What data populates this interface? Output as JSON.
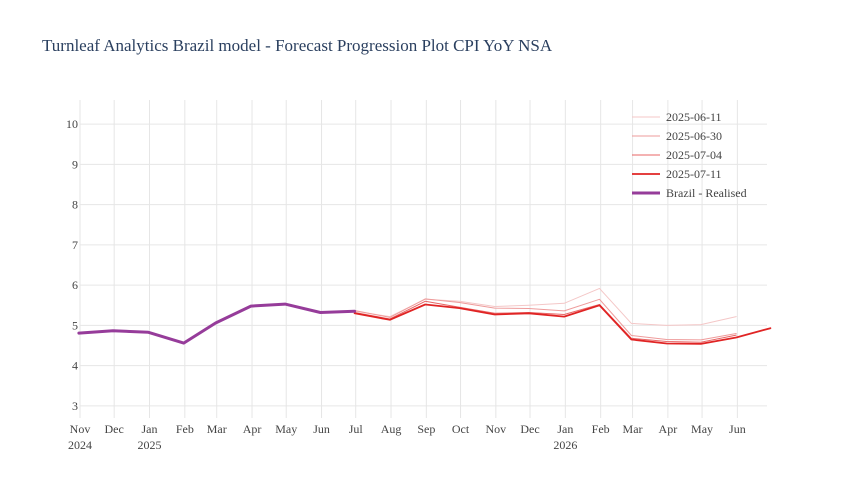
{
  "chart_data": {
    "type": "line",
    "title": "Turnleaf Analytics Brazil model - Forecast Progression Plot CPI YoY NSA",
    "xlabel": "",
    "ylabel": "",
    "x_range": [
      "2024-11-01",
      "2026-06-27"
    ],
    "ylim": [
      2.7,
      10.6
    ],
    "y_ticks": [
      3,
      4,
      5,
      6,
      7,
      8,
      9,
      10
    ],
    "x_ticks": [
      {
        "date": "2024-11-01",
        "label": "Nov",
        "year": "2024"
      },
      {
        "date": "2024-12-01",
        "label": "Dec",
        "year": ""
      },
      {
        "date": "2025-01-01",
        "label": "Jan",
        "year": "2025"
      },
      {
        "date": "2025-02-01",
        "label": "Feb",
        "year": ""
      },
      {
        "date": "2025-03-01",
        "label": "Mar",
        "year": ""
      },
      {
        "date": "2025-04-01",
        "label": "Apr",
        "year": ""
      },
      {
        "date": "2025-05-01",
        "label": "May",
        "year": ""
      },
      {
        "date": "2025-06-01",
        "label": "Jun",
        "year": ""
      },
      {
        "date": "2025-07-01",
        "label": "Jul",
        "year": ""
      },
      {
        "date": "2025-08-01",
        "label": "Aug",
        "year": ""
      },
      {
        "date": "2025-09-01",
        "label": "Sep",
        "year": ""
      },
      {
        "date": "2025-10-01",
        "label": "Oct",
        "year": ""
      },
      {
        "date": "2025-11-01",
        "label": "Nov",
        "year": ""
      },
      {
        "date": "2025-12-01",
        "label": "Dec",
        "year": ""
      },
      {
        "date": "2026-01-01",
        "label": "Jan",
        "year": "2026"
      },
      {
        "date": "2026-02-01",
        "label": "Feb",
        "year": ""
      },
      {
        "date": "2026-03-01",
        "label": "Mar",
        "year": ""
      },
      {
        "date": "2026-04-01",
        "label": "Apr",
        "year": ""
      },
      {
        "date": "2026-05-01",
        "label": "May",
        "year": ""
      },
      {
        "date": "2026-06-01",
        "label": "Jun",
        "year": ""
      }
    ],
    "grid": true,
    "legend_position": "top-right",
    "series": [
      {
        "name": "2025-06-11",
        "color": "#f4c7c7",
        "width": 1,
        "points": [
          {
            "x": "2025-05-31",
            "y": 5.32
          },
          {
            "x": "2025-06-30",
            "y": 5.35
          },
          {
            "x": "2025-07-31",
            "y": 5.22
          },
          {
            "x": "2025-08-31",
            "y": 5.65
          },
          {
            "x": "2025-09-30",
            "y": 5.6
          },
          {
            "x": "2025-10-31",
            "y": 5.47
          },
          {
            "x": "2025-11-30",
            "y": 5.5
          },
          {
            "x": "2025-12-31",
            "y": 5.55
          },
          {
            "x": "2026-01-31",
            "y": 5.92
          },
          {
            "x": "2026-02-28",
            "y": 5.05
          },
          {
            "x": "2026-03-31",
            "y": 5.0
          },
          {
            "x": "2026-04-30",
            "y": 5.02
          },
          {
            "x": "2026-05-31",
            "y": 5.22
          }
        ]
      },
      {
        "name": "2025-06-30",
        "color": "#ee9b9b",
        "width": 1,
        "points": [
          {
            "x": "2025-06-30",
            "y": 5.37
          },
          {
            "x": "2025-07-31",
            "y": 5.2
          },
          {
            "x": "2025-08-31",
            "y": 5.66
          },
          {
            "x": "2025-09-30",
            "y": 5.57
          },
          {
            "x": "2025-10-31",
            "y": 5.43
          },
          {
            "x": "2025-11-30",
            "y": 5.42
          },
          {
            "x": "2025-12-31",
            "y": 5.36
          },
          {
            "x": "2026-01-31",
            "y": 5.65
          },
          {
            "x": "2026-02-28",
            "y": 4.75
          },
          {
            "x": "2026-03-31",
            "y": 4.65
          },
          {
            "x": "2026-04-30",
            "y": 4.64
          },
          {
            "x": "2026-05-31",
            "y": 4.8
          }
        ]
      },
      {
        "name": "2025-07-04",
        "color": "#e86565",
        "width": 1,
        "points": [
          {
            "x": "2025-06-30",
            "y": 5.32
          },
          {
            "x": "2025-07-31",
            "y": 5.16
          },
          {
            "x": "2025-08-31",
            "y": 5.6
          },
          {
            "x": "2025-09-30",
            "y": 5.45
          },
          {
            "x": "2025-10-31",
            "y": 5.3
          },
          {
            "x": "2025-11-30",
            "y": 5.32
          },
          {
            "x": "2025-12-31",
            "y": 5.27
          },
          {
            "x": "2026-01-31",
            "y": 5.52
          },
          {
            "x": "2026-02-28",
            "y": 4.68
          },
          {
            "x": "2026-03-31",
            "y": 4.6
          },
          {
            "x": "2026-04-30",
            "y": 4.58
          },
          {
            "x": "2026-05-31",
            "y": 4.76
          }
        ]
      },
      {
        "name": "2025-07-11",
        "color": "#e02424",
        "width": 1.8,
        "points": [
          {
            "x": "2025-06-30",
            "y": 5.3
          },
          {
            "x": "2025-07-31",
            "y": 5.14
          },
          {
            "x": "2025-08-31",
            "y": 5.52
          },
          {
            "x": "2025-09-30",
            "y": 5.43
          },
          {
            "x": "2025-10-31",
            "y": 5.27
          },
          {
            "x": "2025-11-30",
            "y": 5.3
          },
          {
            "x": "2025-12-31",
            "y": 5.22
          },
          {
            "x": "2026-01-31",
            "y": 5.5
          },
          {
            "x": "2026-02-28",
            "y": 4.65
          },
          {
            "x": "2026-03-31",
            "y": 4.55
          },
          {
            "x": "2026-04-30",
            "y": 4.54
          },
          {
            "x": "2026-05-31",
            "y": 4.7
          },
          {
            "x": "2026-06-30",
            "y": 4.93
          }
        ]
      },
      {
        "name": "Brazil - Realised",
        "color": "#963c9a",
        "width": 3,
        "points": [
          {
            "x": "2024-10-31",
            "y": 4.81
          },
          {
            "x": "2024-11-30",
            "y": 4.87
          },
          {
            "x": "2024-12-31",
            "y": 4.83
          },
          {
            "x": "2025-01-31",
            "y": 4.56
          },
          {
            "x": "2025-02-28",
            "y": 5.06
          },
          {
            "x": "2025-03-31",
            "y": 5.48
          },
          {
            "x": "2025-04-30",
            "y": 5.53
          },
          {
            "x": "2025-05-31",
            "y": 5.32
          },
          {
            "x": "2025-06-30",
            "y": 5.35
          }
        ]
      }
    ]
  }
}
